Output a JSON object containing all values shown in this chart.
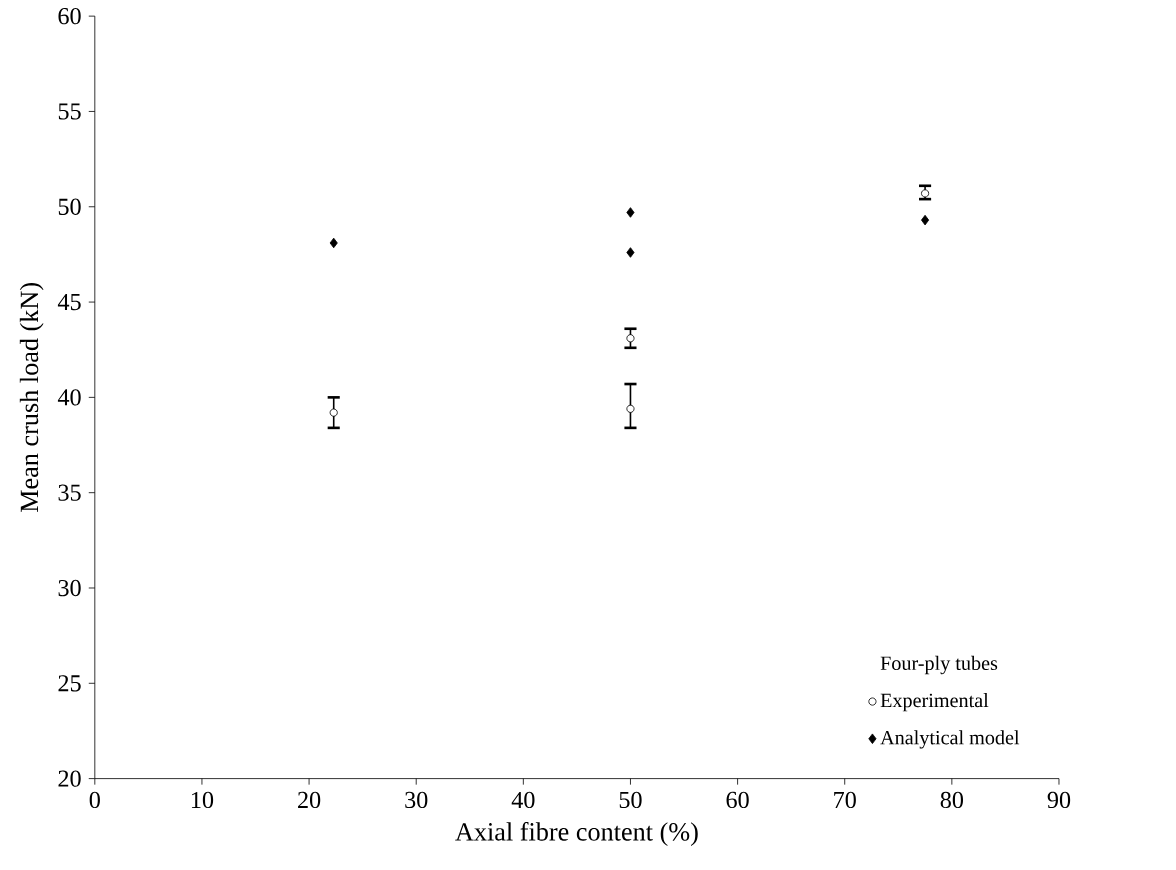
{
  "chart_data": {
    "type": "scatter",
    "xlabel": "Axial fibre content (%)",
    "ylabel": "Mean crush load (kN)",
    "legend_title": "Four-ply tubes",
    "xlim": [
      0,
      90
    ],
    "xticks": [
      0,
      10,
      20,
      30,
      40,
      50,
      60,
      70,
      80,
      90
    ],
    "ylim": [
      20,
      60
    ],
    "yticks": [
      20,
      25,
      30,
      35,
      40,
      45,
      50,
      55,
      60
    ],
    "grid": false,
    "legend": "bottom right",
    "series": [
      {
        "name": "Experimental",
        "color": "#000000",
        "marker": "circle",
        "x": [
          22.3,
          50,
          50,
          77.5
        ],
        "values": [
          39.2,
          43.1,
          39.4,
          50.7
        ],
        "errors": [
          [
            38.4,
            40.0
          ],
          [
            42.6,
            43.6
          ],
          [
            38.4,
            40.7
          ],
          [
            50.4,
            51.1
          ]
        ]
      },
      {
        "name": "Analytical model",
        "color": "#000000",
        "marker": "diamond",
        "x": [
          22.3,
          50,
          50,
          77.5
        ],
        "values": [
          48.1,
          49.7,
          47.6,
          49.3
        ]
      }
    ]
  }
}
